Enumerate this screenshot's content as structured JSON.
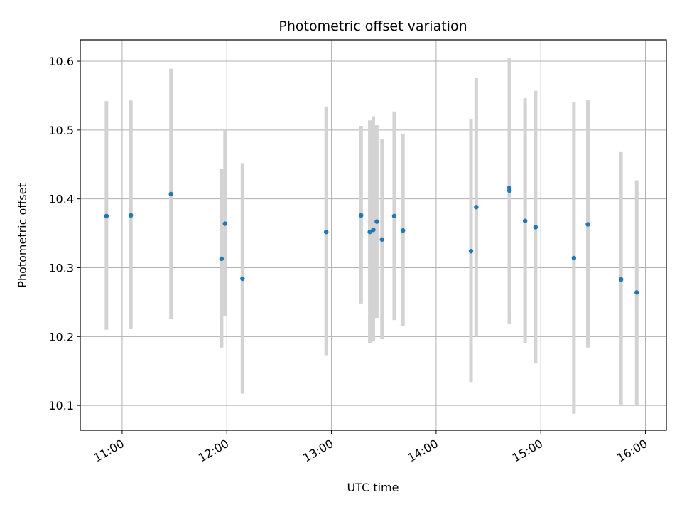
{
  "chart_data": {
    "type": "scatter",
    "title": "Photometric offset variation",
    "xlabel": "UTC time",
    "ylabel": "Photometric offset",
    "xlim": [
      "10:36",
      "16:12"
    ],
    "ylim": [
      10.064,
      10.631
    ],
    "grid": true,
    "x_ticks": [
      "11:00",
      "12:00",
      "13:00",
      "14:00",
      "15:00",
      "16:00"
    ],
    "y_ticks": [
      "10.1",
      "10.2",
      "10.3",
      "10.4",
      "10.5",
      "10.6"
    ],
    "point_color": "#1f77b4",
    "errorbar_color": "#d3d3d3",
    "points": [
      {
        "time": "10:51",
        "value": 10.375,
        "low": 10.21,
        "high": 10.542
      },
      {
        "time": "11:05",
        "value": 10.376,
        "low": 10.211,
        "high": 10.543
      },
      {
        "time": "11:28",
        "value": 10.407,
        "low": 10.226,
        "high": 10.589
      },
      {
        "time": "11:57",
        "value": 10.313,
        "low": 10.184,
        "high": 10.444
      },
      {
        "time": "11:59",
        "value": 10.364,
        "low": 10.23,
        "high": 10.5
      },
      {
        "time": "12:09",
        "value": 10.284,
        "low": 10.117,
        "high": 10.452
      },
      {
        "time": "12:57",
        "value": 10.352,
        "low": 10.173,
        "high": 10.534
      },
      {
        "time": "13:17",
        "value": 10.376,
        "low": 10.248,
        "high": 10.506
      },
      {
        "time": "13:22",
        "value": 10.352,
        "low": 10.191,
        "high": 10.514
      },
      {
        "time": "13:24",
        "value": 10.355,
        "low": 10.193,
        "high": 10.52
      },
      {
        "time": "13:26",
        "value": 10.367,
        "low": 10.227,
        "high": 10.507
      },
      {
        "time": "13:29",
        "value": 10.341,
        "low": 10.196,
        "high": 10.487
      },
      {
        "time": "13:36",
        "value": 10.375,
        "low": 10.224,
        "high": 10.527
      },
      {
        "time": "13:41",
        "value": 10.354,
        "low": 10.215,
        "high": 10.494
      },
      {
        "time": "14:20",
        "value": 10.324,
        "low": 10.134,
        "high": 10.516
      },
      {
        "time": "14:23",
        "value": 10.388,
        "low": 10.2,
        "high": 10.576
      },
      {
        "time": "14:42",
        "value": 10.416,
        "low": 10.229,
        "high": 10.603
      },
      {
        "time": "14:42",
        "value": 10.412,
        "low": 10.219,
        "high": 10.605
      },
      {
        "time": "14:51",
        "value": 10.368,
        "low": 10.19,
        "high": 10.546
      },
      {
        "time": "14:57",
        "value": 10.359,
        "low": 10.161,
        "high": 10.557
      },
      {
        "time": "15:19",
        "value": 10.314,
        "low": 10.088,
        "high": 10.54
      },
      {
        "time": "15:27",
        "value": 10.363,
        "low": 10.184,
        "high": 10.544
      },
      {
        "time": "15:46",
        "value": 10.283,
        "low": 10.1,
        "high": 10.468
      },
      {
        "time": "15:55",
        "value": 10.264,
        "low": 10.1,
        "high": 10.427
      }
    ]
  }
}
